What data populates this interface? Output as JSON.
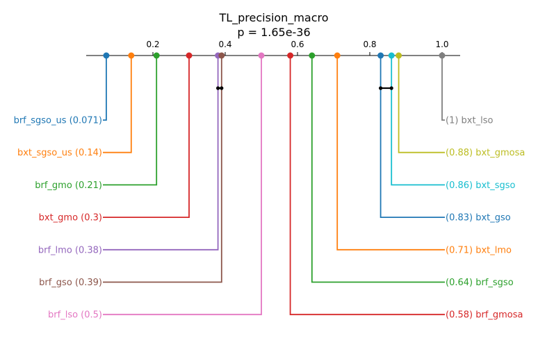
{
  "chart_data": {
    "type": "critical-difference",
    "title": "TL_precision_macro",
    "subtitle": "p = 1.65e-36",
    "xlim": [
      0.0,
      1.05
    ],
    "ticks": [
      {
        "value": 0.2,
        "label": "0.2"
      },
      {
        "value": 0.4,
        "label": "0.4"
      },
      {
        "value": 0.6,
        "label": "0.6"
      },
      {
        "value": 0.8,
        "label": "0.8"
      },
      {
        "value": 1.0,
        "label": "1.0"
      }
    ],
    "left_items": [
      {
        "name": "brf_sgso_us",
        "value": 0.071,
        "label": "brf_sgso_us (0.071)",
        "color": "#1f77b4"
      },
      {
        "name": "bxt_sgso_us",
        "value": 0.14,
        "label": "bxt_sgso_us (0.14)",
        "color": "#ff7f0e"
      },
      {
        "name": "brf_gmo",
        "value": 0.21,
        "label": "brf_gmo (0.21)",
        "color": "#2ca02c"
      },
      {
        "name": "bxt_gmo",
        "value": 0.3,
        "label": "bxt_gmo (0.3)",
        "color": "#d62728"
      },
      {
        "name": "brf_lmo",
        "value": 0.38,
        "label": "brf_lmo (0.38)",
        "color": "#9467bd"
      },
      {
        "name": "brf_gso",
        "value": 0.39,
        "label": "brf_gso (0.39)",
        "color": "#8c564b"
      },
      {
        "name": "brf_lso",
        "value": 0.5,
        "label": "brf_lso (0.5)",
        "color": "#e377c2"
      }
    ],
    "right_items": [
      {
        "name": "bxt_lso",
        "value": 1.0,
        "label": "(1) bxt_lso",
        "color": "#7f7f7f"
      },
      {
        "name": "bxt_gmosa",
        "value": 0.88,
        "label": "(0.88) bxt_gmosa",
        "color": "#bcbd22"
      },
      {
        "name": "bxt_sgso",
        "value": 0.86,
        "label": "(0.86) bxt_sgso",
        "color": "#17becf"
      },
      {
        "name": "bxt_gso",
        "value": 0.83,
        "label": "(0.83) bxt_gso",
        "color": "#1f77b4"
      },
      {
        "name": "bxt_lmo",
        "value": 0.71,
        "label": "(0.71) bxt_lmo",
        "color": "#ff7f0e"
      },
      {
        "name": "brf_sgso",
        "value": 0.64,
        "label": "(0.64) brf_sgso",
        "color": "#2ca02c"
      },
      {
        "name": "brf_gmosa",
        "value": 0.58,
        "label": "(0.58) brf_gmosa",
        "color": "#d62728"
      }
    ],
    "cliques": [
      [
        0.38,
        0.39
      ],
      [
        0.83,
        0.86
      ]
    ]
  }
}
